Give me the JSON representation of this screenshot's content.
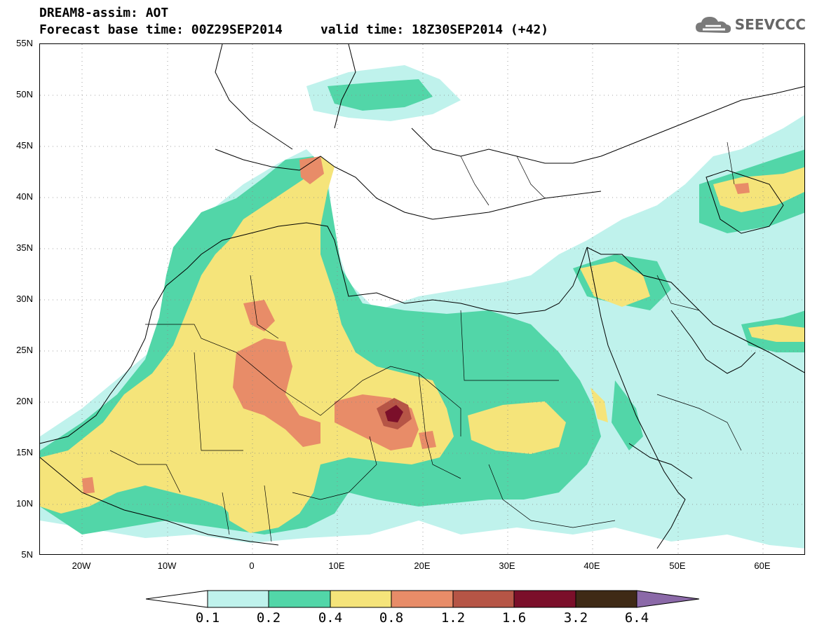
{
  "header": {
    "title_line1": "DREAM8-assim: AOT",
    "title_line2": "Forecast base time: 00Z29SEP2014     valid time: 18Z30SEP2014 (+42)"
  },
  "logo": {
    "text": "SEEVCCC",
    "icon": "cloud-icon"
  },
  "map": {
    "lat_labels": [
      "55N",
      "50N",
      "45N",
      "40N",
      "35N",
      "30N",
      "25N",
      "20N",
      "15N",
      "10N",
      "5N"
    ],
    "lon_labels": [
      "20W",
      "10W",
      "0",
      "10E",
      "20E",
      "30E",
      "40E",
      "50E",
      "60E"
    ],
    "lat_range": [
      5,
      55
    ],
    "lon_range": [
      -25,
      65
    ],
    "grid": "dotted"
  },
  "colorbar": {
    "levels": [
      "0.1",
      "0.2",
      "0.4",
      "0.8",
      "1.2",
      "1.6",
      "3.2",
      "6.4"
    ],
    "colors": [
      "#ffffff",
      "#bff2ec",
      "#52d6a8",
      "#f5e47a",
      "#e88c68",
      "#b65546",
      "#7b0f2a",
      "#3f2a16",
      "#8b69a8"
    ]
  }
}
